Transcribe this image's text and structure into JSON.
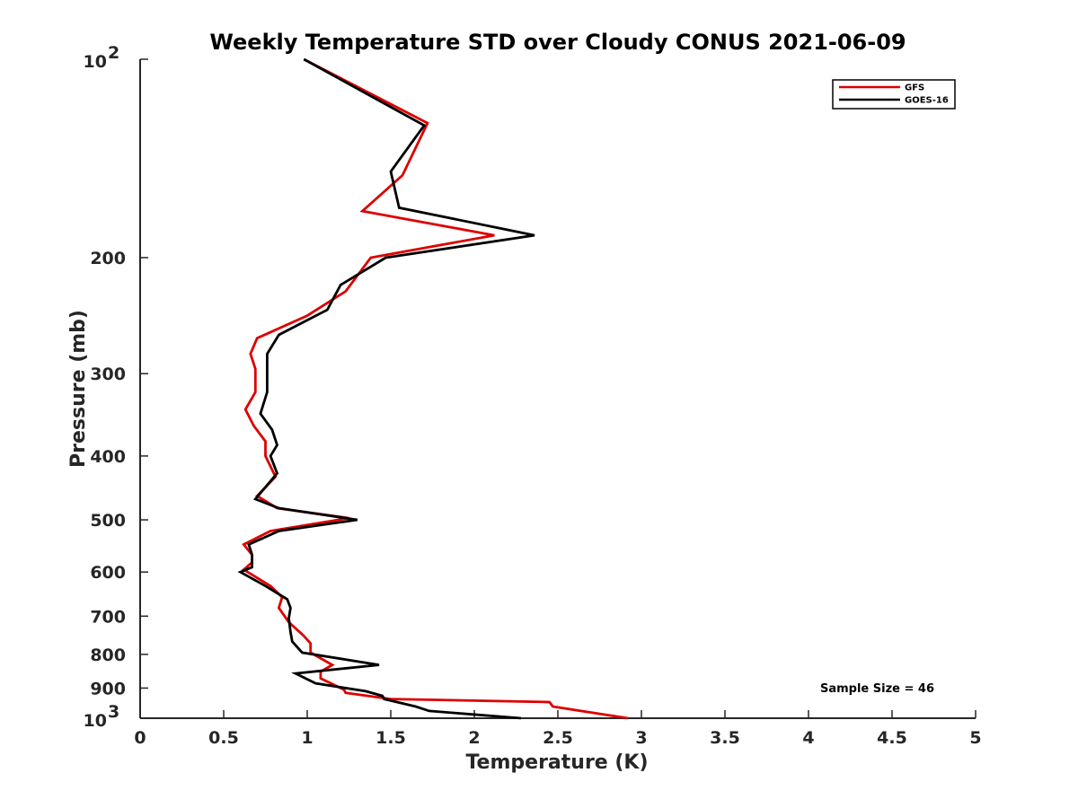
{
  "chart_data": {
    "type": "line",
    "title": "Weekly Temperature STD over Cloudy CONUS 2021-06-09",
    "xlabel": "Temperature (K)",
    "ylabel": "Pressure (mb)",
    "xlim": [
      0,
      5
    ],
    "ylim": [
      100,
      1000
    ],
    "yscale": "log",
    "y_reversed": true,
    "grid": false,
    "legend_position": "top-right",
    "x_ticks": [
      {
        "value": 0,
        "label": "0"
      },
      {
        "value": 0.5,
        "label": "0.5"
      },
      {
        "value": 1,
        "label": "1"
      },
      {
        "value": 1.5,
        "label": "1.5"
      },
      {
        "value": 2,
        "label": "2"
      },
      {
        "value": 2.5,
        "label": "2.5"
      },
      {
        "value": 3,
        "label": "3"
      },
      {
        "value": 3.5,
        "label": "3.5"
      },
      {
        "value": 4,
        "label": "4"
      },
      {
        "value": 4.5,
        "label": "4.5"
      },
      {
        "value": 5,
        "label": "5"
      }
    ],
    "y_ticks": [
      {
        "value": 100,
        "base": "10",
        "exp": "2"
      },
      {
        "value": 200,
        "label": "200"
      },
      {
        "value": 300,
        "label": "300"
      },
      {
        "value": 400,
        "label": "400"
      },
      {
        "value": 500,
        "label": "500"
      },
      {
        "value": 600,
        "label": "600"
      },
      {
        "value": 700,
        "label": "700"
      },
      {
        "value": 800,
        "label": "800"
      },
      {
        "value": 900,
        "label": "900"
      },
      {
        "value": 1000,
        "base": "10",
        "exp": "3"
      }
    ],
    "annotation": "Sample Size = 46",
    "series": [
      {
        "name": "GFS",
        "color": "#dd0000",
        "points": [
          [
            0.98,
            100
          ],
          [
            1.72,
            125
          ],
          [
            1.57,
            150
          ],
          [
            1.33,
            170
          ],
          [
            2.12,
            185
          ],
          [
            1.38,
            200
          ],
          [
            1.23,
            225
          ],
          [
            1.0,
            245
          ],
          [
            0.7,
            265
          ],
          [
            0.66,
            280
          ],
          [
            0.69,
            295
          ],
          [
            0.69,
            320
          ],
          [
            0.63,
            340
          ],
          [
            0.68,
            360
          ],
          [
            0.75,
            380
          ],
          [
            0.75,
            400
          ],
          [
            0.81,
            430
          ],
          [
            0.7,
            460
          ],
          [
            0.82,
            480
          ],
          [
            1.25,
            497
          ],
          [
            0.78,
            520
          ],
          [
            0.62,
            545
          ],
          [
            0.67,
            565
          ],
          [
            0.67,
            580
          ],
          [
            0.62,
            595
          ],
          [
            0.78,
            630
          ],
          [
            0.85,
            655
          ],
          [
            0.83,
            680
          ],
          [
            0.89,
            715
          ],
          [
            0.98,
            750
          ],
          [
            1.02,
            770
          ],
          [
            1.02,
            795
          ],
          [
            1.15,
            830
          ],
          [
            1.08,
            850
          ],
          [
            1.08,
            870
          ],
          [
            1.22,
            905
          ],
          [
            1.23,
            915
          ],
          [
            1.5,
            935
          ],
          [
            2.45,
            945
          ],
          [
            2.47,
            960
          ],
          [
            2.92,
            1000
          ]
        ]
      },
      {
        "name": "GOES-16",
        "color": "#000000",
        "points": [
          [
            0.98,
            100
          ],
          [
            1.7,
            126
          ],
          [
            1.5,
            148
          ],
          [
            1.55,
            168
          ],
          [
            2.36,
            185
          ],
          [
            1.47,
            200
          ],
          [
            1.2,
            220
          ],
          [
            1.12,
            240
          ],
          [
            0.83,
            262
          ],
          [
            0.76,
            280
          ],
          [
            0.76,
            300
          ],
          [
            0.76,
            320
          ],
          [
            0.72,
            345
          ],
          [
            0.79,
            365
          ],
          [
            0.82,
            385
          ],
          [
            0.78,
            400
          ],
          [
            0.82,
            425
          ],
          [
            0.69,
            465
          ],
          [
            0.83,
            480
          ],
          [
            1.3,
            500
          ],
          [
            0.83,
            520
          ],
          [
            0.65,
            545
          ],
          [
            0.67,
            565
          ],
          [
            0.67,
            590
          ],
          [
            0.6,
            600
          ],
          [
            0.75,
            630
          ],
          [
            0.88,
            660
          ],
          [
            0.9,
            680
          ],
          [
            0.89,
            705
          ],
          [
            0.9,
            740
          ],
          [
            0.91,
            765
          ],
          [
            0.97,
            795
          ],
          [
            1.43,
            830
          ],
          [
            0.93,
            855
          ],
          [
            1.05,
            885
          ],
          [
            1.35,
            910
          ],
          [
            1.45,
            925
          ],
          [
            1.46,
            935
          ],
          [
            1.65,
            960
          ],
          [
            1.73,
            975
          ],
          [
            2.28,
            1000
          ]
        ]
      }
    ]
  }
}
